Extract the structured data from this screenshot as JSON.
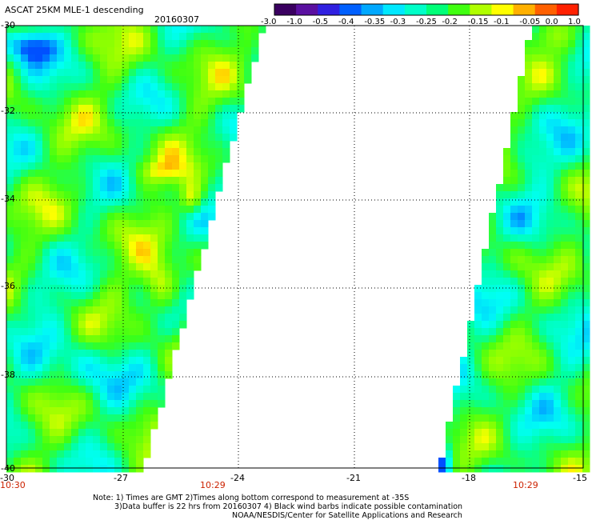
{
  "header": {
    "title": "ASCAT 25KM MLE-1 descending",
    "date": "20160307"
  },
  "colorbar": {
    "tick_labels": [
      "-3.0",
      "-1.0",
      "-0.5",
      "-0.4",
      "-0.35",
      "-0.3",
      "-0.25",
      "-0.2",
      "-0.15",
      "-0.1",
      "-0.05",
      "0.0",
      "1.0"
    ],
    "colors": [
      "#3a0060",
      "#5a10a0",
      "#3020e0",
      "#0060ff",
      "#00a8ff",
      "#00e8ff",
      "#00ffc8",
      "#00ff78",
      "#40ff10",
      "#b0ff00",
      "#ffff00",
      "#ffb000",
      "#ff6000",
      "#ff2000"
    ]
  },
  "map": {
    "lat_labels": [
      "-30",
      "-32",
      "-34",
      "-36",
      "-38",
      "-40"
    ],
    "lon_labels": [
      "-30",
      "-27",
      "-24",
      "-21",
      "-18",
      "-15"
    ],
    "time_labels": [
      "10:30",
      "10:29",
      "10:29"
    ],
    "lat_range": [
      -40,
      -30
    ],
    "lon_range": [
      -30,
      -15
    ],
    "gridlines": true
  },
  "notes": {
    "line1": "Note: 1) Times are GMT 2)Times along bottom correspond to measurement at -35S",
    "line2": "3)Data buffer is 22 hrs from 20160307 4) Black wind barbs indicate possible contamination",
    "line3": "NOAA/NESDIS/Center for Satellite Applications and Research"
  }
}
